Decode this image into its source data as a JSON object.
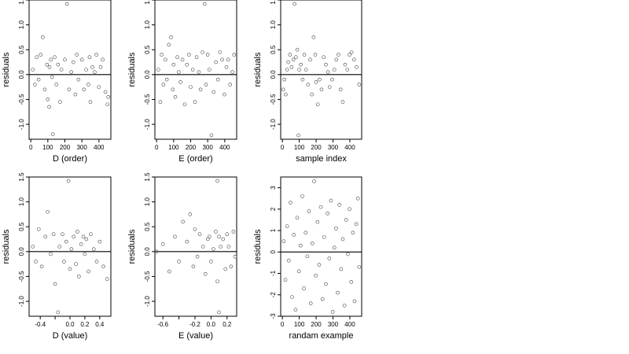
{
  "chart_data": [
    {
      "type": "scatter",
      "xlabel": "D (order)",
      "ylabel": "residuals",
      "xlim": [
        -10,
        470
      ],
      "ylim": [
        -1.3,
        1.5
      ],
      "xticks": [
        0,
        100,
        200,
        300,
        400
      ],
      "xtick_labels": [
        "0",
        "100",
        "200",
        "300",
        "400"
      ],
      "yticks": [
        -1.0,
        -0.5,
        0.0,
        0.5,
        1.0,
        1.5
      ],
      "ytick_labels": [
        "-1.0",
        "-0.5",
        "0.0",
        "0.5",
        "1.0",
        "1.5"
      ],
      "hline": 0,
      "x": [
        12,
        24,
        35,
        46,
        58,
        70,
        82,
        95,
        100,
        108,
        110,
        118,
        125,
        130,
        140,
        150,
        160,
        172,
        180,
        200,
        212,
        225,
        238,
        250,
        262,
        270,
        280,
        300,
        312,
        325,
        338,
        345,
        350,
        362,
        375,
        385,
        400,
        410,
        422,
        438,
        450,
        455
      ],
      "y": [
        0.1,
        -0.2,
        0.35,
        -0.1,
        0.4,
        0.75,
        -0.3,
        0.2,
        -0.5,
        -0.65,
        0.15,
        0.3,
        -0.05,
        -1.2,
        0.35,
        -0.2,
        0.2,
        -0.55,
        0.1,
        0.3,
        1.42,
        -0.3,
        0.05,
        0.25,
        -0.4,
        0.4,
        -0.1,
        0.3,
        -0.3,
        0.1,
        -0.2,
        0.35,
        -0.55,
        0.15,
        0.05,
        0.4,
        -0.25,
        0.15,
        0.3,
        -0.35,
        -0.6,
        -0.45
      ]
    },
    {
      "type": "scatter",
      "xlabel": "E (order)",
      "ylabel": "residuals",
      "xlim": [
        -10,
        470
      ],
      "ylim": [
        -1.3,
        1.5
      ],
      "xticks": [
        0,
        100,
        200,
        300,
        400
      ],
      "xtick_labels": [
        "0",
        "100",
        "200",
        "300",
        "400"
      ],
      "yticks": [
        -1.0,
        -0.5,
        0.0,
        0.5,
        1.0,
        1.5
      ],
      "ytick_labels": [
        "-1.0",
        "-0.5",
        "0.0",
        "0.5",
        "1.0",
        "1.5"
      ],
      "hline": 0,
      "x": [
        10,
        22,
        30,
        40,
        52,
        60,
        72,
        85,
        95,
        100,
        110,
        122,
        130,
        140,
        152,
        165,
        178,
        190,
        200,
        212,
        225,
        235,
        248,
        258,
        270,
        282,
        290,
        300,
        310,
        322,
        335,
        348,
        360,
        372,
        385,
        398,
        410,
        420,
        432,
        445,
        455
      ],
      "y": [
        0.1,
        -0.55,
        0.4,
        -0.2,
        0.3,
        -0.1,
        0.6,
        0.75,
        -0.3,
        0.2,
        -0.45,
        0.35,
        0.05,
        -0.15,
        0.3,
        -0.6,
        0.2,
        0.4,
        -0.25,
        0.1,
        -0.55,
        0.35,
        0.05,
        -0.3,
        0.45,
        1.42,
        -0.2,
        0.4,
        0.1,
        -1.22,
        -0.35,
        0.25,
        -0.1,
        0.45,
        0.3,
        -0.4,
        0.15,
        0.3,
        -0.2,
        0.05,
        0.4
      ]
    },
    {
      "type": "scatter",
      "xlabel": "sample index",
      "ylabel": "residuals",
      "xlim": [
        -10,
        470
      ],
      "ylim": [
        -1.3,
        1.5
      ],
      "xticks": [
        0,
        100,
        200,
        300,
        400
      ],
      "xtick_labels": [
        "0",
        "100",
        "200",
        "300",
        "400"
      ],
      "yticks": [
        -1.0,
        -0.5,
        0.0,
        0.5,
        1.0,
        1.5
      ],
      "ytick_labels": [
        "-1.0",
        "-0.5",
        "0.0",
        "0.5",
        "1.0",
        "1.5"
      ],
      "hline": 0,
      "x": [
        5,
        12,
        20,
        28,
        35,
        45,
        55,
        65,
        72,
        80,
        88,
        95,
        100,
        110,
        120,
        130,
        140,
        152,
        165,
        175,
        185,
        195,
        200,
        210,
        220,
        232,
        245,
        258,
        270,
        280,
        295,
        308,
        320,
        332,
        345,
        358,
        372,
        385,
        398,
        410,
        425,
        440,
        455
      ],
      "y": [
        -0.3,
        -0.1,
        -0.4,
        0.1,
        0.25,
        0.4,
        0.15,
        0.3,
        1.42,
        0.35,
        0.5,
        -1.22,
        0.1,
        0.2,
        -0.1,
        0.4,
        0.1,
        -0.2,
        0.3,
        -0.4,
        0.75,
        0.4,
        -0.15,
        -0.6,
        -0.1,
        -0.3,
        0.35,
        0.2,
        0.05,
        -0.25,
        -0.1,
        0.1,
        0.3,
        0.4,
        -0.3,
        -0.55,
        0.2,
        0.1,
        0.4,
        0.45,
        0.3,
        0.15,
        -0.2
      ]
    },
    {
      "type": "scatter",
      "xlabel": "D (value)",
      "ylabel": "residuals",
      "xlim": [
        -0.55,
        0.55
      ],
      "ylim": [
        -1.3,
        1.5
      ],
      "xticks": [
        -0.4,
        -0.2,
        0.0,
        0.2,
        0.4
      ],
      "xtick_labels": [
        "-0.4",
        "",
        "0.0",
        "0.2",
        "0.4"
      ],
      "yticks": [
        -1.0,
        -0.5,
        0.0,
        0.5,
        1.0,
        1.5
      ],
      "ytick_labels": [
        "-1.0",
        "-0.5",
        "0.0",
        "0.5",
        "1.0",
        "1.5"
      ],
      "hline": 0,
      "x": [
        -0.5,
        -0.46,
        -0.42,
        -0.38,
        -0.33,
        -0.3,
        -0.26,
        -0.22,
        -0.2,
        -0.16,
        -0.14,
        -0.1,
        -0.08,
        -0.05,
        -0.02,
        0.0,
        0.02,
        0.05,
        0.08,
        0.1,
        0.12,
        0.15,
        0.18,
        0.2,
        0.22,
        0.25,
        0.28,
        0.32,
        0.36,
        0.4,
        0.45,
        0.5
      ],
      "y": [
        0.1,
        -0.2,
        0.45,
        -0.3,
        0.3,
        0.8,
        -0.05,
        0.35,
        -0.65,
        -1.22,
        0.1,
        0.35,
        -0.2,
        0.2,
        1.42,
        -0.35,
        0.05,
        0.3,
        -0.25,
        0.4,
        -0.5,
        0.15,
        0.3,
        -0.05,
        0.25,
        -0.4,
        0.35,
        0.05,
        -0.2,
        0.2,
        -0.3,
        -0.55
      ]
    },
    {
      "type": "scatter",
      "xlabel": "E (value)",
      "ylabel": "residuals",
      "xlim": [
        -0.7,
        0.32
      ],
      "ylim": [
        -1.3,
        1.5
      ],
      "xticks": [
        -0.6,
        -0.4,
        -0.2,
        0.0,
        0.2
      ],
      "xtick_labels": [
        "-0.6",
        "",
        "-0.2",
        "0.0",
        "0.2"
      ],
      "yticks": [
        -1.0,
        -0.5,
        0.0,
        0.5,
        1.0,
        1.5
      ],
      "ytick_labels": [
        "-1.0",
        "-0.5",
        "0.0",
        "0.5",
        "1.0",
        "1.5"
      ],
      "hline": 0,
      "x": [
        -0.68,
        -0.6,
        -0.52,
        -0.45,
        -0.4,
        -0.35,
        -0.3,
        -0.26,
        -0.22,
        -0.2,
        -0.17,
        -0.14,
        -0.1,
        -0.07,
        -0.04,
        -0.02,
        0.0,
        0.03,
        0.06,
        0.08,
        0.08,
        0.1,
        0.1,
        0.12,
        0.15,
        0.18,
        0.2,
        0.22,
        0.25,
        0.28,
        0.3
      ],
      "y": [
        0.0,
        0.15,
        -0.4,
        0.3,
        -0.2,
        0.6,
        0.2,
        0.75,
        -0.3,
        0.45,
        -0.1,
        0.35,
        0.1,
        -0.45,
        0.25,
        0.3,
        -0.2,
        0.05,
        0.4,
        1.42,
        -0.6,
        0.3,
        -1.22,
        0.1,
        0.25,
        -0.35,
        0.35,
        0.1,
        -0.3,
        0.4,
        -0.1
      ]
    },
    {
      "type": "scatter",
      "xlabel": "randam example",
      "ylabel": "residuals",
      "xlim": [
        -10,
        470
      ],
      "ylim": [
        -3,
        3.5
      ],
      "xticks": [
        0,
        100,
        200,
        300,
        400
      ],
      "xtick_labels": [
        "0",
        "100",
        "200",
        "300",
        "400"
      ],
      "yticks": [
        -3,
        -2,
        -1,
        0,
        1,
        2,
        3
      ],
      "ytick_labels": [
        "-3",
        "-2",
        "-1",
        "0",
        "1",
        "2",
        "3"
      ],
      "hline": 0,
      "x": [
        8,
        18,
        28,
        38,
        48,
        58,
        68,
        78,
        88,
        98,
        108,
        118,
        128,
        138,
        148,
        158,
        168,
        178,
        188,
        198,
        208,
        218,
        228,
        238,
        248,
        258,
        268,
        278,
        288,
        298,
        308,
        318,
        328,
        338,
        348,
        358,
        368,
        378,
        388,
        398,
        408,
        418,
        428,
        438,
        448,
        455
      ],
      "y": [
        0.5,
        -1.3,
        1.2,
        -0.4,
        2.3,
        -2.1,
        0.8,
        -2.7,
        1.6,
        -0.9,
        0.3,
        2.6,
        -1.7,
        0.9,
        -0.2,
        1.9,
        -2.4,
        0.4,
        3.3,
        -1.1,
        1.4,
        -0.6,
        2.1,
        -2.2,
        0.7,
        -1.5,
        1.8,
        -0.3,
        2.4,
        -2.8,
        0.2,
        1.1,
        -1.9,
        2.2,
        -0.8,
        0.6,
        -2.5,
        1.5,
        -0.1,
        2.0,
        -1.4,
        0.9,
        -2.3,
        1.3,
        2.5,
        -0.7
      ]
    }
  ]
}
